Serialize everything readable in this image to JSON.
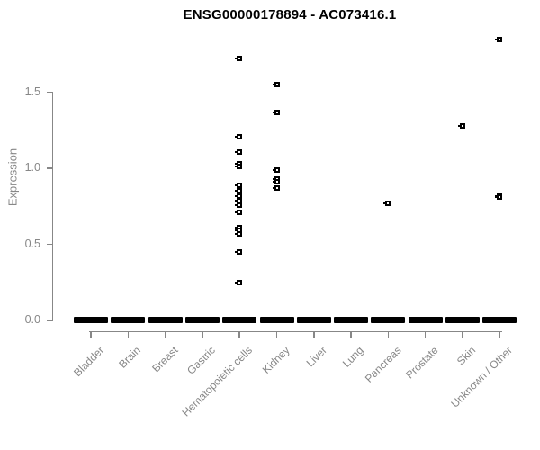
{
  "title": "ENSG00000178894 - AC073416.1",
  "colors": {
    "axis": "#878787",
    "point": "#000000",
    "title": "#000000",
    "background": "#ffffff"
  },
  "chart_data": {
    "type": "scatter",
    "title": "ENSG00000178894 - AC073416.1",
    "xlabel": "",
    "ylabel": "Expression",
    "ylim": [
      0,
      1.9
    ],
    "y_ticks": [
      "0.0",
      "0.5",
      "1.0",
      "1.5"
    ],
    "grid": false,
    "legend": "none",
    "point_symbol": "small-open-square",
    "categories": [
      "Bladder",
      "Brain",
      "Breast",
      "Gastric",
      "Hematopoietic cells",
      "Kidney",
      "Liver",
      "Lung",
      "Pancreas",
      "Prostate",
      "Skin",
      "Unknown / Other"
    ],
    "series": [
      {
        "category": "Bladder",
        "zero_cluster": true,
        "nonzero_values": []
      },
      {
        "category": "Brain",
        "zero_cluster": true,
        "nonzero_values": []
      },
      {
        "category": "Breast",
        "zero_cluster": true,
        "nonzero_values": []
      },
      {
        "category": "Gastric",
        "zero_cluster": true,
        "nonzero_values": []
      },
      {
        "category": "Hematopoietic cells",
        "zero_cluster": true,
        "nonzero_values": [
          1.72,
          1.21,
          1.11,
          1.03,
          1.01,
          0.89,
          0.85,
          0.82,
          0.79,
          0.76,
          0.71,
          0.61,
          0.59,
          0.57,
          0.45,
          0.25
        ]
      },
      {
        "category": "Kidney",
        "zero_cluster": true,
        "nonzero_values": [
          1.55,
          1.37,
          0.99,
          0.93,
          0.91,
          0.87
        ]
      },
      {
        "category": "Liver",
        "zero_cluster": true,
        "nonzero_values": []
      },
      {
        "category": "Lung",
        "zero_cluster": true,
        "nonzero_values": []
      },
      {
        "category": "Pancreas",
        "zero_cluster": true,
        "nonzero_values": [
          0.77
        ]
      },
      {
        "category": "Prostate",
        "zero_cluster": true,
        "nonzero_values": []
      },
      {
        "category": "Skin",
        "zero_cluster": true,
        "nonzero_values": [
          1.28
        ]
      },
      {
        "category": "Unknown / Other",
        "zero_cluster": true,
        "nonzero_values": [
          1.85,
          0.82,
          0.81
        ]
      }
    ]
  }
}
